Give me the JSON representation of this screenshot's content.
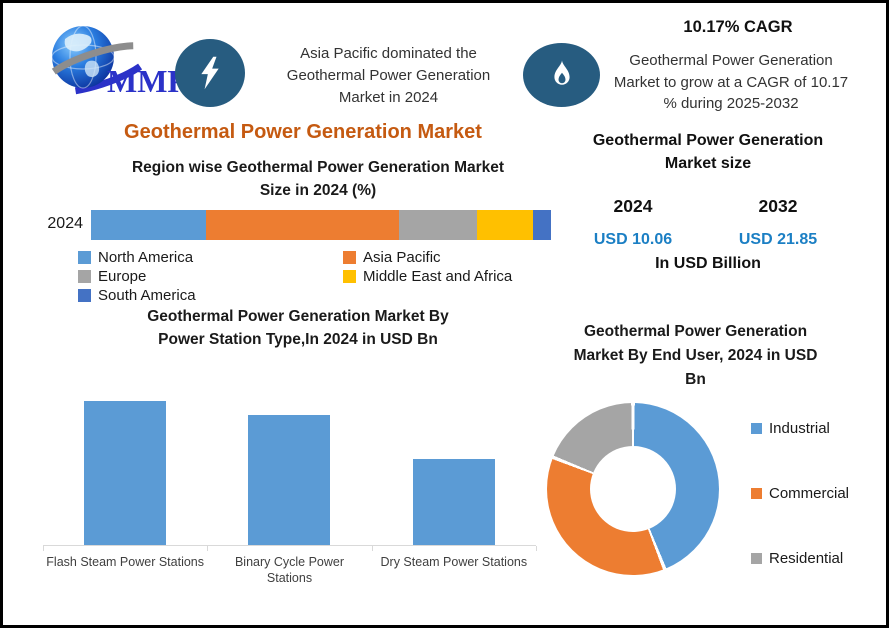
{
  "header": {
    "logo_text": "MMR",
    "fact_left": "Asia Pacific dominated the\nGeothermal Power Generation\nMarket in 2024",
    "cagr_headline": "10.17% CAGR",
    "cagr_detail": "Geothermal Power Generation\nMarket to grow at a CAGR of 10.17\n% during 2025-2032"
  },
  "main_title": "Geothermal Power Generation Market",
  "market_size": {
    "title": "Geothermal Power Generation\nMarket size",
    "years": [
      {
        "year": "2024",
        "value": "USD 10.06"
      },
      {
        "year": "2032",
        "value": "USD 21.85"
      }
    ],
    "unit_note": "In USD Billion",
    "value_color": "#1B7FC4"
  },
  "colors": {
    "badge_navy": "#275C80",
    "accent_orange_title": "#C55A11",
    "series_blue": "#5B9BD5",
    "series_orange": "#ED7D31",
    "series_gray": "#A5A5A5",
    "series_yellow": "#FFC000",
    "series_dark_blue": "#4472C4"
  },
  "chart_data": [
    {
      "id": "region_share_2024",
      "type": "bar",
      "variant": "stacked-horizontal",
      "title": "Region wise Geothermal Power Generation Market\nSize in 2024 (%)",
      "categories": [
        "2024"
      ],
      "unit": "%",
      "values_estimated_from_pixels": true,
      "legend_position": "bottom",
      "series": [
        {
          "name": "North America",
          "value": 25,
          "color": "#5B9BD5"
        },
        {
          "name": "Asia Pacific",
          "value": 42,
          "color": "#ED7D31"
        },
        {
          "name": "Europe",
          "value": 17,
          "color": "#A5A5A5"
        },
        {
          "name": "Middle East and Africa",
          "value": 12,
          "color": "#FFC000"
        },
        {
          "name": "South America",
          "value": 4,
          "color": "#4472C4"
        }
      ]
    },
    {
      "id": "power_station_type_2024",
      "type": "bar",
      "title": "Geothermal Power Generation Market By\nPower Station Type,In 2024 in USD Bn",
      "categories": [
        "Flash Steam Power Stations",
        "Binary Cycle Power\nStations",
        "Dry Steam Power Stations"
      ],
      "values": [
        4.0,
        3.6,
        2.4
      ],
      "unit": "USD Bn",
      "values_estimated_from_pixels": true,
      "bar_color": "#5B9BD5",
      "ylim": [
        0,
        4.8
      ],
      "grid": false,
      "value_labels_shown": false
    },
    {
      "id": "end_user_2024",
      "type": "pie",
      "variant": "donut",
      "title": "Geothermal Power Generation\nMarket By End User, 2024 in USD\nBn",
      "categories": [
        "Industrial",
        "Commercial",
        "Residential"
      ],
      "values": [
        44,
        37,
        19
      ],
      "unit": "% share",
      "values_estimated_from_pixels": true,
      "colors": [
        "#5B9BD5",
        "#ED7D31",
        "#A5A5A5"
      ],
      "legend_position": "right"
    }
  ]
}
